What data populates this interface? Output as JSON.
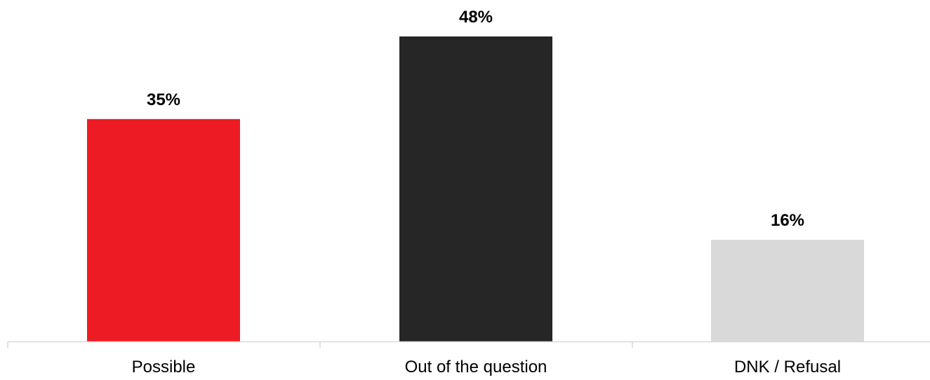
{
  "chart_data": {
    "type": "bar",
    "categories": [
      "Possible",
      "Out of the question",
      "DNK / Refusal"
    ],
    "values": [
      35,
      48,
      16
    ],
    "value_labels": [
      "35%",
      "48%",
      "16%"
    ],
    "colors": [
      "#ed1c24",
      "#262626",
      "#d9d9d9"
    ],
    "axis_color": "#d9d9d9",
    "title": "",
    "xlabel": "",
    "ylabel": "",
    "ylim": [
      0,
      48
    ],
    "grid": false,
    "legend": "none"
  }
}
